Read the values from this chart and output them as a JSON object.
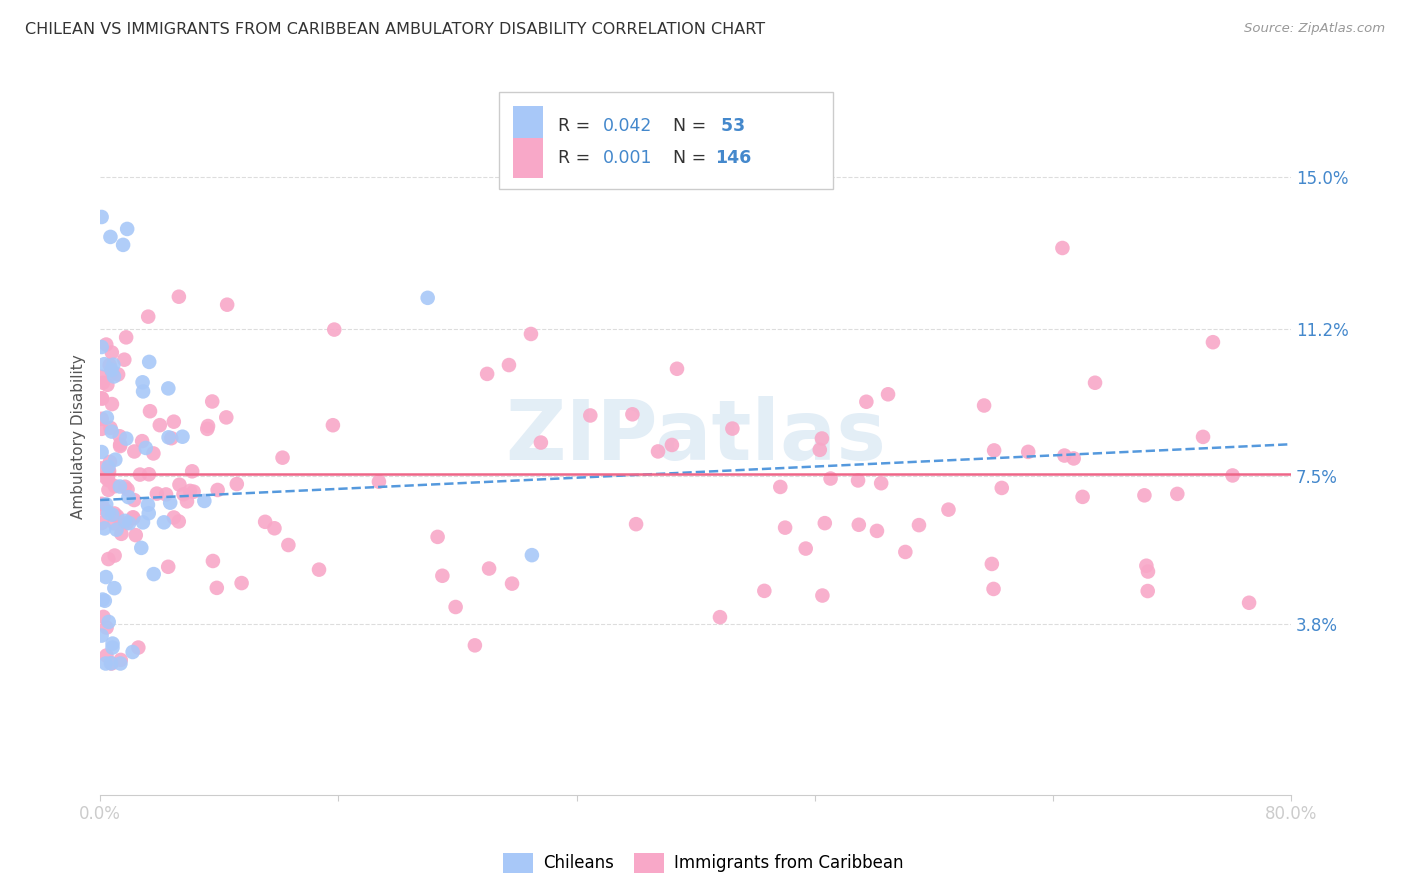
{
  "title": "CHILEAN VS IMMIGRANTS FROM CARIBBEAN AMBULATORY DISABILITY CORRELATION CHART",
  "source": "Source: ZipAtlas.com",
  "ylabel": "Ambulatory Disability",
  "xlim": [
    0.0,
    0.8
  ],
  "ylim": [
    -0.005,
    0.175
  ],
  "yticks": [
    0.038,
    0.075,
    0.112,
    0.15
  ],
  "ytick_labels": [
    "3.8%",
    "7.5%",
    "11.2%",
    "15.0%"
  ],
  "xticks": [
    0.0,
    0.16,
    0.32,
    0.48,
    0.64,
    0.8
  ],
  "xtick_labels": [
    "0.0%",
    "",
    "",
    "",
    "",
    "80.0%"
  ],
  "color_chilean": "#a8c8f8",
  "color_immigrant": "#f8a8c8",
  "color_line_chilean": "#5599dd",
  "color_line_immigrant": "#ee6688",
  "color_blue": "#4488cc",
  "watermark": "ZIPatlas",
  "background_color": "#ffffff",
  "grid_color": "#dddddd",
  "ch_trend_x0": 0.0,
  "ch_trend_y0": 0.069,
  "ch_trend_x1": 0.8,
  "ch_trend_y1": 0.083,
  "im_trend_y": 0.0755
}
